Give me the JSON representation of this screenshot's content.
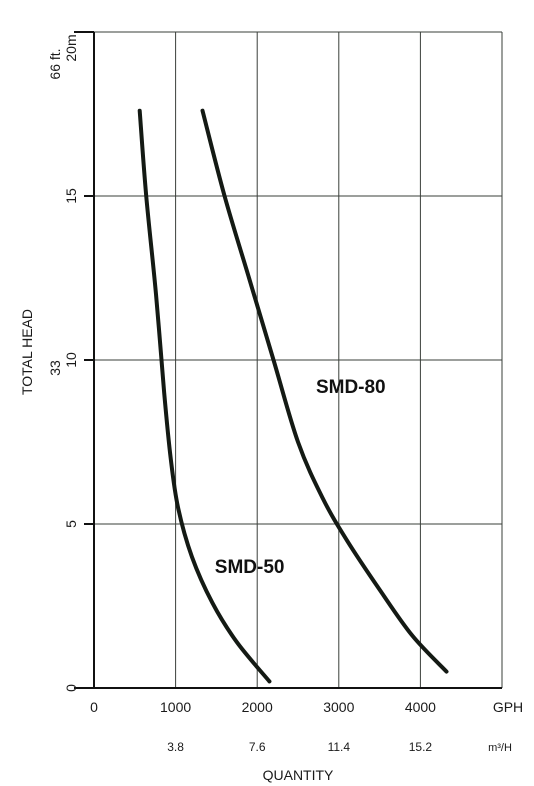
{
  "chart_data": {
    "type": "line",
    "title": "",
    "xlabel": "QUANTITY",
    "ylabel": "TOTAL HEAD",
    "x_unit": "GPH",
    "x_ticks": [
      "0",
      "1000",
      "2000",
      "3000",
      "4000"
    ],
    "x_secondary_unit": "m³/H",
    "x_secondary_ticks": [
      "3.8",
      "7.6",
      "11.4",
      "15.2"
    ],
    "y_unit_m": "20m",
    "y_ticks_m": [
      "0",
      "5",
      "10",
      "15"
    ],
    "y_ticks_ft": [
      "33",
      "66 ft."
    ],
    "xlim": [
      0,
      5000
    ],
    "ylim": [
      0,
      20
    ],
    "grid": true,
    "series": [
      {
        "name": "SMD-50",
        "points": [
          [
            560,
            17.6
          ],
          [
            640,
            15.0
          ],
          [
            760,
            12.0
          ],
          [
            860,
            9.0
          ],
          [
            940,
            7.0
          ],
          [
            1030,
            5.5
          ],
          [
            1200,
            4.0
          ],
          [
            1450,
            2.6
          ],
          [
            1750,
            1.4
          ],
          [
            2150,
            0.2
          ]
        ]
      },
      {
        "name": "SMD-80",
        "points": [
          [
            1330,
            17.6
          ],
          [
            1600,
            15.0
          ],
          [
            1900,
            12.5
          ],
          [
            2200,
            10.0
          ],
          [
            2500,
            7.5
          ],
          [
            2800,
            5.8
          ],
          [
            3100,
            4.5
          ],
          [
            3500,
            3.0
          ],
          [
            3900,
            1.6
          ],
          [
            4320,
            0.5
          ]
        ]
      }
    ],
    "colors": {
      "line": "#141a14",
      "grid": "#3a3f3a",
      "background": "#ffffff"
    }
  }
}
